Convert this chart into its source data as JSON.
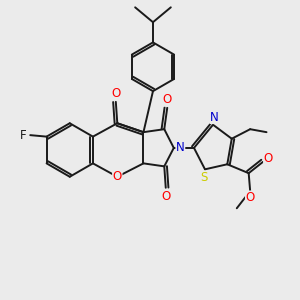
{
  "bg_color": "#ebebeb",
  "figsize": [
    3.0,
    3.0
  ],
  "dpi": 100,
  "bond_color": "#1a1a1a",
  "bond_width": 1.4,
  "font_size": 8.5,
  "colors": {
    "O": "#ff0000",
    "N": "#0000cc",
    "S": "#cccc00",
    "F": "#1a1a1a",
    "C": "#1a1a1a"
  },
  "scale": 1.0
}
